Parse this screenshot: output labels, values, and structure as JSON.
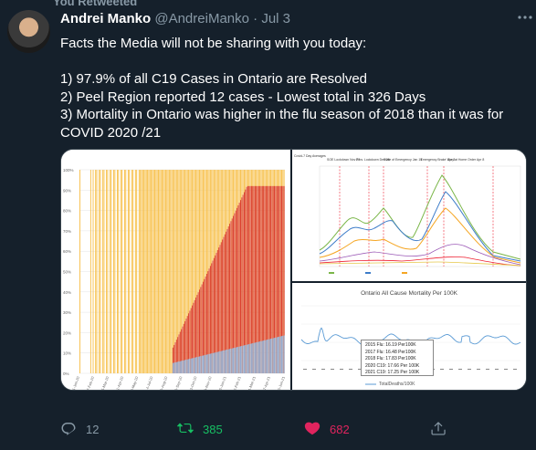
{
  "topline": "You Retweeted",
  "tweet": {
    "display_name": "Andrei Manko",
    "handle": "@AndreiManko",
    "separator": "·",
    "date": "Jul 3",
    "intro": "Facts the Media will not be sharing with you today:",
    "points": [
      "1) 97.9% of all C19 Cases in Ontario are Resolved",
      "2) Peel Region reported 12 cases - Lowest total in 326 Days",
      "3) Mortality in Ontario was higher in the flu season of 2018 than it was for COVID 2020 /21"
    ]
  },
  "media": {
    "left_chart": {
      "y_ticks": [
        "100%",
        "90%",
        "80%",
        "70%",
        "60%",
        "50%",
        "40%",
        "30%",
        "20%",
        "10%",
        "0%"
      ],
      "x_ticks": [
        "01-Jan-20",
        "7-Feb-20",
        "15-Mar-20",
        "21-Apr-20",
        "28-May-20",
        "4-Jul-20",
        "10-Aug-20",
        "16-Sep-20",
        "23-Oct-20",
        "29-Nov-20",
        "6-Jan-21",
        "12-Feb-21",
        "21-Mar-21",
        "27-Apr-21",
        "3-Jun-21"
      ]
    },
    "right_top_chart": {
      "annotations": [
        "Covid-7 Day Averages",
        "SOE Lockdown Nov 23",
        "Prov. Lockdown Dec 26",
        "State of Emergency Jan 14",
        "'Emergency Brake' Apr 3",
        "Stay at Home Order Apr 8"
      ]
    },
    "right_bottom_chart": {
      "title": "Ontario All Cause Mortality Per 100K",
      "legend": [
        "2015 Flu: 16.19 Per100K",
        "2017 Flu: 16.48 Per100K",
        "2018 Flu: 17.83 Per100K",
        "2020 C19: 17.66 Per 100K",
        "2021 C19: 17.25 Per 100K"
      ],
      "series_label": "TotalDeaths/100K"
    }
  },
  "actions": {
    "reply_count": "12",
    "retweet_count": "385",
    "like_count": "682"
  },
  "colors": {
    "background": "#15202b",
    "muted": "#8899a6",
    "retweet_active": "#17bf63",
    "like_active": "#e0245e"
  }
}
